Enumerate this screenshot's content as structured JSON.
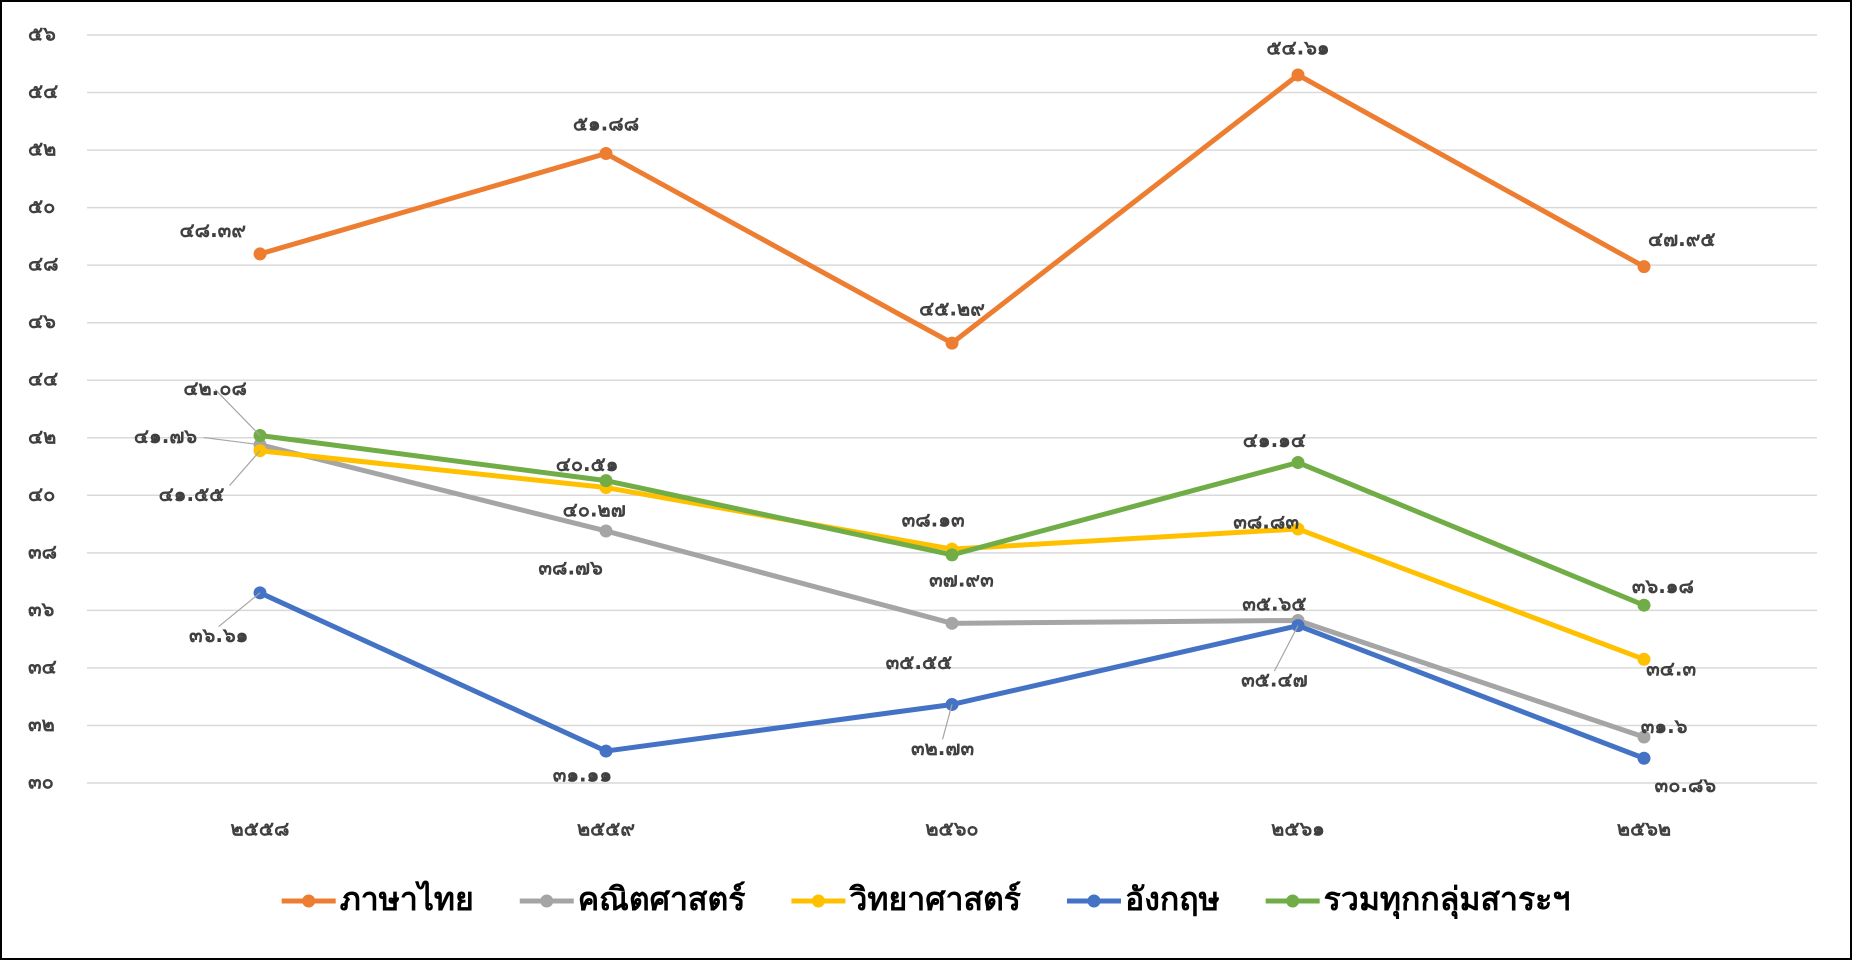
{
  "chart_data": {
    "type": "line",
    "categories": [
      "๒๕๕๘",
      "๒๕๕๙",
      "๒๕๖๐",
      "๒๕๖๑",
      "๒๕๖๒"
    ],
    "series": [
      {
        "name": "ภาษาไทย",
        "color": "#ed7d31",
        "values": [
          48.39,
          51.88,
          45.29,
          54.61,
          47.95
        ],
        "value_labels": [
          "๔๘.๓๙",
          "๕๑.๘๘",
          "๔๕.๒๙",
          "๕๔.๖๑",
          "๔๗.๙๕"
        ]
      },
      {
        "name": "คณิตศาสตร์",
        "color": "#a5a5a5",
        "values": [
          41.76,
          38.76,
          35.55,
          35.65,
          31.6
        ],
        "value_labels": [
          "๔๑.๗๖",
          "๓๘.๗๖",
          "๓๕.๕๕",
          "๓๕.๖๕",
          "๓๑.๖"
        ]
      },
      {
        "name": "วิทยาศาสตร์",
        "color": "#ffc000",
        "values": [
          41.55,
          40.27,
          38.13,
          38.83,
          34.3
        ],
        "value_labels": [
          "๔๑.๕๕",
          "๔๐.๒๗",
          "๓๘.๑๓",
          "๓๘.๘๓",
          "๓๔.๓"
        ]
      },
      {
        "name": "อังกฤษ",
        "color": "#4472c4",
        "values": [
          36.61,
          31.11,
          32.73,
          35.47,
          30.86
        ],
        "value_labels": [
          "๓๖.๖๑",
          "๓๑.๑๑",
          "๓๒.๗๓",
          "๓๕.๔๗",
          "๓๐.๘๖"
        ]
      },
      {
        "name": "รวมทุกกลุ่มสาระฯ",
        "color": "#70ad47",
        "values": [
          42.08,
          40.51,
          37.93,
          41.14,
          36.18
        ],
        "value_labels": [
          "๔๒.๐๘",
          "๔๐.๕๑",
          "๓๗.๙๓",
          "๔๑.๑๔",
          "๓๖.๑๘"
        ]
      }
    ],
    "ylim": [
      30,
      56
    ],
    "yticks": [
      {
        "value": 30,
        "label": "๓๐"
      },
      {
        "value": 32,
        "label": "๓๒"
      },
      {
        "value": 34,
        "label": "๓๔"
      },
      {
        "value": 36,
        "label": "๓๖"
      },
      {
        "value": 38,
        "label": "๓๘"
      },
      {
        "value": 40,
        "label": "๔๐"
      },
      {
        "value": 42,
        "label": "๔๒"
      },
      {
        "value": 44,
        "label": "๔๔"
      },
      {
        "value": 46,
        "label": "๔๖"
      },
      {
        "value": 48,
        "label": "๔๘"
      },
      {
        "value": 50,
        "label": "๕๐"
      },
      {
        "value": 52,
        "label": "๕๒"
      },
      {
        "value": 54,
        "label": "๕๔"
      },
      {
        "value": 56,
        "label": "๕๖"
      }
    ],
    "grid": true,
    "legend": "bottom"
  }
}
